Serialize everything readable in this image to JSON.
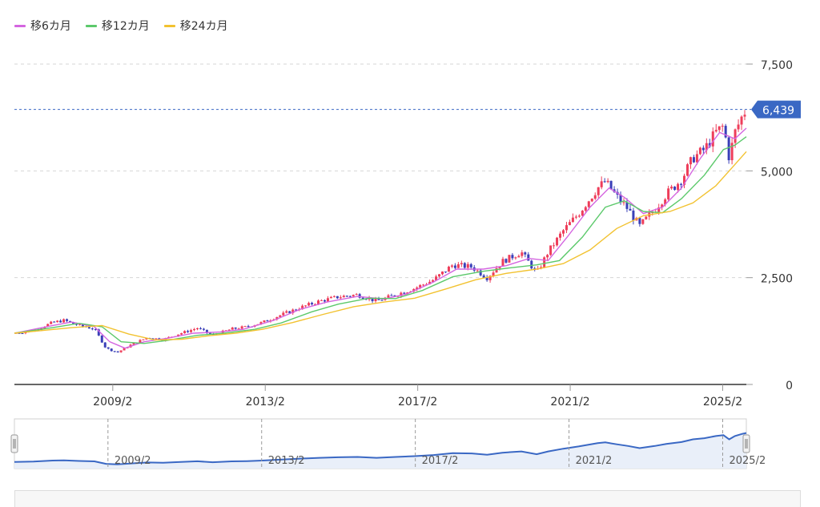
{
  "legend": [
    {
      "label": "移6カ月",
      "color": "#d465e0"
    },
    {
      "label": "移12カ月",
      "color": "#5cc96b"
    },
    {
      "label": "移24カ月",
      "color": "#f2c230"
    }
  ],
  "last_price": {
    "label": "6,439",
    "value": 6439,
    "color": "#3a68c4"
  },
  "colors": {
    "up": "#ee3d5a",
    "down": "#3a3fb8",
    "grid": "#d6d6d6",
    "navigator_line": "#3a68c4",
    "navigator_fill": "#e9eff9"
  },
  "chart_data": {
    "type": "candlestick",
    "title": "",
    "xlabel": "",
    "ylabel": "",
    "ylim": [
      0,
      7500
    ],
    "y_ticks": [
      {
        "value": 0,
        "label": "0"
      },
      {
        "value": 2500,
        "label": "2,500"
      },
      {
        "value": 5000,
        "label": "5,000"
      },
      {
        "value": 7500,
        "label": "7,500"
      }
    ],
    "x_ticks": [
      {
        "value": 2009.08,
        "label": "2009/2"
      },
      {
        "value": 2013.08,
        "label": "2013/2"
      },
      {
        "value": 2017.08,
        "label": "2017/2"
      },
      {
        "value": 2021.08,
        "label": "2021/2"
      },
      {
        "value": 2025.08,
        "label": "2025/2"
      }
    ],
    "x_range": [
      2006.5,
      2025.7
    ],
    "series_price": [
      [
        2006.5,
        1200
      ],
      [
        2007.0,
        1260
      ],
      [
        2007.5,
        1450
      ],
      [
        2007.8,
        1500
      ],
      [
        2008.2,
        1380
      ],
      [
        2008.6,
        1300
      ],
      [
        2008.9,
        850
      ],
      [
        2009.2,
        750
      ],
      [
        2009.6,
        950
      ],
      [
        2010.0,
        1100
      ],
      [
        2010.4,
        1050
      ],
      [
        2010.8,
        1180
      ],
      [
        2011.3,
        1320
      ],
      [
        2011.7,
        1150
      ],
      [
        2012.2,
        1300
      ],
      [
        2012.6,
        1350
      ],
      [
        2013.0,
        1450
      ],
      [
        2013.5,
        1630
      ],
      [
        2014.0,
        1800
      ],
      [
        2014.5,
        1950
      ],
      [
        2015.0,
        2050
      ],
      [
        2015.5,
        2100
      ],
      [
        2016.0,
        1950
      ],
      [
        2016.5,
        2100
      ],
      [
        2017.0,
        2250
      ],
      [
        2017.5,
        2450
      ],
      [
        2018.0,
        2800
      ],
      [
        2018.5,
        2750
      ],
      [
        2018.9,
        2500
      ],
      [
        2019.3,
        2880
      ],
      [
        2019.8,
        3100
      ],
      [
        2020.2,
        2600
      ],
      [
        2020.5,
        3100
      ],
      [
        2020.9,
        3600
      ],
      [
        2021.3,
        4000
      ],
      [
        2021.8,
        4600
      ],
      [
        2022.0,
        4750
      ],
      [
        2022.3,
        4400
      ],
      [
        2022.6,
        4100
      ],
      [
        2022.9,
        3700
      ],
      [
        2023.3,
        4100
      ],
      [
        2023.6,
        4450
      ],
      [
        2024.0,
        4800
      ],
      [
        2024.3,
        5300
      ],
      [
        2024.6,
        5500
      ],
      [
        2024.9,
        5900
      ],
      [
        2025.1,
        6050
      ],
      [
        2025.25,
        5300
      ],
      [
        2025.4,
        5900
      ],
      [
        2025.6,
        6300
      ],
      [
        2025.7,
        6439
      ]
    ],
    "series": [
      {
        "name": "移6カ月",
        "values": [
          [
            2006.5,
            1200
          ],
          [
            2007.5,
            1380
          ],
          [
            2008.0,
            1460
          ],
          [
            2008.6,
            1350
          ],
          [
            2009.0,
            1000
          ],
          [
            2009.4,
            850
          ],
          [
            2009.9,
            1000
          ],
          [
            2010.5,
            1080
          ],
          [
            2011.2,
            1200
          ],
          [
            2011.9,
            1230
          ],
          [
            2012.5,
            1290
          ],
          [
            2013.3,
            1500
          ],
          [
            2014.0,
            1760
          ],
          [
            2014.7,
            1930
          ],
          [
            2015.5,
            2060
          ],
          [
            2016.2,
            2000
          ],
          [
            2016.8,
            2120
          ],
          [
            2017.5,
            2400
          ],
          [
            2018.1,
            2700
          ],
          [
            2018.8,
            2700
          ],
          [
            2019.4,
            2780
          ],
          [
            2020.0,
            2950
          ],
          [
            2020.5,
            2900
          ],
          [
            2021.0,
            3450
          ],
          [
            2021.6,
            4150
          ],
          [
            2022.1,
            4600
          ],
          [
            2022.5,
            4380
          ],
          [
            2023.0,
            4000
          ],
          [
            2023.5,
            4150
          ],
          [
            2024.0,
            4600
          ],
          [
            2024.5,
            5300
          ],
          [
            2025.0,
            5900
          ],
          [
            2025.4,
            5750
          ],
          [
            2025.7,
            6000
          ]
        ]
      },
      {
        "name": "移12カ月",
        "values": [
          [
            2006.5,
            1200
          ],
          [
            2007.5,
            1330
          ],
          [
            2008.2,
            1430
          ],
          [
            2008.8,
            1350
          ],
          [
            2009.3,
            1000
          ],
          [
            2009.9,
            960
          ],
          [
            2010.5,
            1030
          ],
          [
            2011.3,
            1150
          ],
          [
            2012.0,
            1200
          ],
          [
            2012.8,
            1290
          ],
          [
            2013.5,
            1440
          ],
          [
            2014.3,
            1700
          ],
          [
            2015.0,
            1880
          ],
          [
            2015.8,
            2020
          ],
          [
            2016.5,
            2010
          ],
          [
            2017.2,
            2200
          ],
          [
            2018.0,
            2520
          ],
          [
            2018.8,
            2650
          ],
          [
            2019.5,
            2730
          ],
          [
            2020.2,
            2800
          ],
          [
            2020.8,
            2900
          ],
          [
            2021.4,
            3450
          ],
          [
            2022.0,
            4150
          ],
          [
            2022.5,
            4300
          ],
          [
            2023.0,
            4050
          ],
          [
            2023.5,
            4020
          ],
          [
            2024.0,
            4350
          ],
          [
            2024.6,
            4900
          ],
          [
            2025.1,
            5500
          ],
          [
            2025.4,
            5600
          ],
          [
            2025.7,
            5800
          ]
        ]
      },
      {
        "name": "移24カ月",
        "values": [
          [
            2006.5,
            1200
          ],
          [
            2008.0,
            1330
          ],
          [
            2008.8,
            1380
          ],
          [
            2009.5,
            1180
          ],
          [
            2010.2,
            1040
          ],
          [
            2010.9,
            1060
          ],
          [
            2011.6,
            1140
          ],
          [
            2012.3,
            1200
          ],
          [
            2013.0,
            1290
          ],
          [
            2013.8,
            1450
          ],
          [
            2014.6,
            1640
          ],
          [
            2015.4,
            1820
          ],
          [
            2016.2,
            1930
          ],
          [
            2017.0,
            2020
          ],
          [
            2017.8,
            2230
          ],
          [
            2018.6,
            2450
          ],
          [
            2019.4,
            2600
          ],
          [
            2020.2,
            2700
          ],
          [
            2020.9,
            2830
          ],
          [
            2021.6,
            3150
          ],
          [
            2022.3,
            3650
          ],
          [
            2023.0,
            3950
          ],
          [
            2023.7,
            4050
          ],
          [
            2024.3,
            4250
          ],
          [
            2024.9,
            4650
          ],
          [
            2025.3,
            5050
          ],
          [
            2025.7,
            5450
          ]
        ]
      }
    ]
  }
}
